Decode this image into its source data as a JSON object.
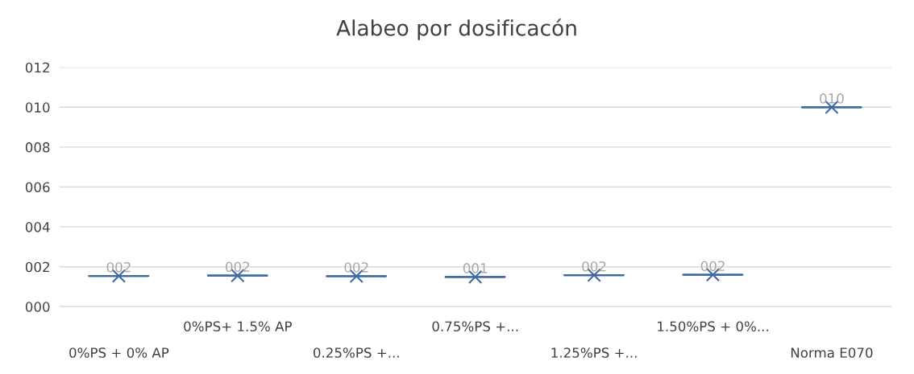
{
  "chart_data": {
    "type": "box",
    "title": "Alabeo por dosificacón",
    "categories": [
      "0%PS + 0% AP",
      "0%PS+ 1.5% AP",
      "0.25%PS +...",
      "0.75%PS +...",
      "1.25%PS +...",
      "1.50%PS + 0%...",
      "Norma E070"
    ],
    "boxes": [
      {
        "low": 1.54,
        "q1": 1.54,
        "median": 1.54,
        "q3": 1.54,
        "high": 1.54,
        "mean": 1.54
      },
      {
        "low": 1.56,
        "q1": 1.56,
        "median": 1.56,
        "q3": 1.56,
        "high": 1.56,
        "mean": 1.56
      },
      {
        "low": 1.53,
        "q1": 1.53,
        "median": 1.53,
        "q3": 1.53,
        "high": 1.53,
        "mean": 1.53
      },
      {
        "low": 1.49,
        "q1": 1.49,
        "median": 1.49,
        "q3": 1.49,
        "high": 1.49,
        "mean": 1.49
      },
      {
        "low": 1.58,
        "q1": 1.58,
        "median": 1.58,
        "q3": 1.58,
        "high": 1.58,
        "mean": 1.58
      },
      {
        "low": 1.6,
        "q1": 1.6,
        "median": 1.6,
        "q3": 1.6,
        "high": 1.6,
        "mean": 1.6
      },
      {
        "low": 10,
        "q1": 10,
        "median": 10,
        "q3": 10,
        "high": 10,
        "mean": 10
      }
    ],
    "value_labels": [
      "002",
      "002",
      "002",
      "001",
      "002",
      "002",
      "010"
    ],
    "color": "#3f69a3",
    "marker": "cross",
    "grid": "y",
    "ylim": [
      0,
      12
    ],
    "yticks": [
      {
        "value": 0,
        "label": "000"
      },
      {
        "value": 2,
        "label": "002"
      },
      {
        "value": 4,
        "label": "004"
      },
      {
        "value": 6,
        "label": "006"
      },
      {
        "value": 8,
        "label": "008"
      },
      {
        "value": 10,
        "label": "010"
      },
      {
        "value": 12,
        "label": "012"
      }
    ]
  }
}
